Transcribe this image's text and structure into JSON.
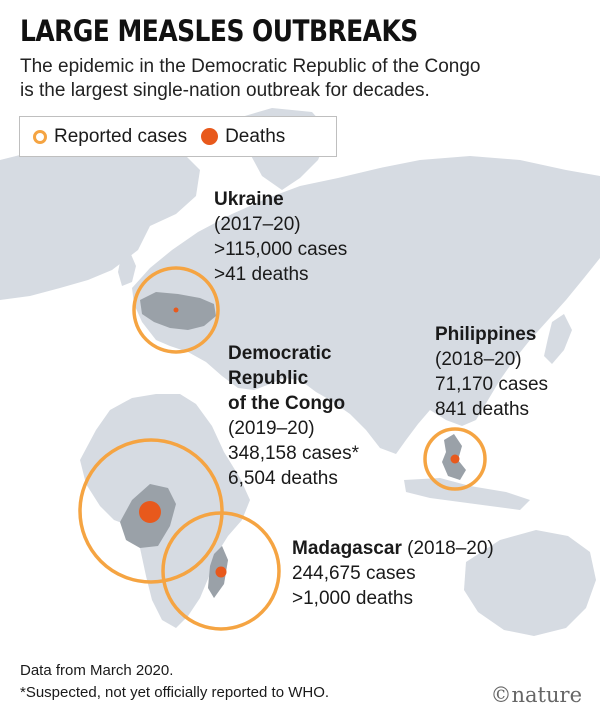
{
  "title": "LARGE MEASLES OUTBREAKS",
  "subtitle_lines": [
    "The epidemic in the Democratic Republic of the Congo",
    "is the largest single-nation outbreak for decades."
  ],
  "legend": {
    "reported": "Reported cases",
    "deaths": "Deaths"
  },
  "colors": {
    "ring": "#f5a442",
    "dot": "#e8591c",
    "land": "#d6dbe2",
    "highlight": "#9aa1a8"
  },
  "outbreaks": [
    {
      "country": "Ukraine",
      "lines": [
        "(2017–20)",
        ">115,000 cases",
        ">41 deaths"
      ],
      "cases_label": ">115,000 cases",
      "deaths_label": ">41 deaths"
    },
    {
      "country": "Democratic Republic of the Congo",
      "name_lines": [
        "Democratic",
        "Republic",
        "of the Congo"
      ],
      "lines": [
        "(2019–20)",
        "348,158 cases*",
        "6,504 deaths"
      ],
      "cases_label": "348,158 cases*",
      "deaths_label": "6,504 deaths"
    },
    {
      "country": "Philippines",
      "lines": [
        "(2018–20)",
        "71,170 cases",
        "841 deaths"
      ],
      "cases_label": "71,170 cases",
      "deaths_label": "841 deaths"
    },
    {
      "country": "Madagascar",
      "period": "(2018–20)",
      "lines": [
        "244,675 cases",
        ">1,000 deaths"
      ],
      "cases_label": "244,675 cases",
      "deaths_label": ">1,000 deaths"
    }
  ],
  "footer": {
    "source": "Data from March 2020.",
    "note": "*Suspected, not yet officially reported to WHO."
  },
  "brand": "©nature"
}
